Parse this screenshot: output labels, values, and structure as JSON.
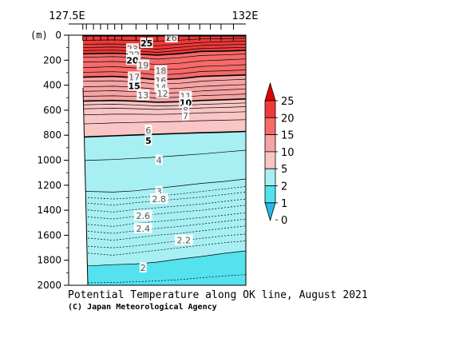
{
  "chart_data": {
    "type": "heatmap",
    "title": "Potential Temperature along OK line, August 2021",
    "credit": "(C) Japan Meteorological Agency",
    "ylabel": "(m)",
    "x_range_labels": [
      "127.5E",
      "132E"
    ],
    "y_ticks": [
      0,
      200,
      400,
      600,
      800,
      1000,
      1200,
      1400,
      1600,
      1800,
      2000
    ],
    "ylim": [
      0,
      2000
    ],
    "y_inverted": true,
    "colorbar_ticks": [
      "0",
      "1",
      "2",
      "5",
      "10",
      "15",
      "20",
      "25"
    ],
    "bands": [
      {
        "from": 25,
        "to": 30,
        "color": "#e30000"
      },
      {
        "from": 20,
        "to": 25,
        "color": "#ee3a3a"
      },
      {
        "from": 15,
        "to": 20,
        "color": "#f66a6a"
      },
      {
        "from": 10,
        "to": 15,
        "color": "#f7a3a3"
      },
      {
        "from": 5,
        "to": 10,
        "color": "#fac5c5"
      },
      {
        "from": 2,
        "to": 5,
        "color": "#a7eff2"
      },
      {
        "from": 1,
        "to": 2,
        "color": "#53e2ee"
      },
      {
        "from": 0,
        "to": 1,
        "color": "#2ab8ec"
      }
    ],
    "contours": [
      {
        "value": 25,
        "depths": [
          5,
          5,
          5,
          5,
          5,
          5,
          5,
          5,
          5
        ],
        "style": "solid",
        "bold": true
      },
      {
        "value": 24,
        "depths": [
          45,
          40,
          38,
          42,
          48,
          40,
          30,
          28,
          25
        ],
        "style": "solid"
      },
      {
        "value": 23,
        "depths": [
          75,
          72,
          70,
          75,
          85,
          72,
          58,
          52,
          48
        ],
        "style": "solid"
      },
      {
        "value": 22,
        "depths": [
          100,
          98,
          95,
          100,
          112,
          98,
          82,
          78,
          72
        ],
        "style": "solid"
      },
      {
        "value": 21,
        "depths": [
          125,
          122,
          120,
          125,
          138,
          122,
          106,
          102,
          98
        ],
        "style": "solid"
      },
      {
        "value": 20,
        "depths": [
          152,
          148,
          145,
          150,
          160,
          148,
          130,
          128,
          122
        ],
        "style": "solid",
        "bold": true
      },
      {
        "value": 19,
        "depths": [
          180,
          176,
          172,
          178,
          192,
          180,
          162,
          158,
          150
        ],
        "style": "solid"
      },
      {
        "value": 18,
        "depths": [
          218,
          214,
          210,
          218,
          235,
          225,
          205,
          198,
          190
        ],
        "style": "solid"
      },
      {
        "value": 17,
        "depths": [
          262,
          258,
          252,
          262,
          278,
          270,
          250,
          244,
          236
        ],
        "style": "solid"
      },
      {
        "value": 16,
        "depths": [
          300,
          296,
          292,
          300,
          318,
          310,
          290,
          285,
          278
        ],
        "style": "solid"
      },
      {
        "value": 15,
        "depths": [
          338,
          334,
          330,
          340,
          356,
          348,
          330,
          324,
          318
        ],
        "style": "solid",
        "bold": true
      },
      {
        "value": 14,
        "depths": [
          372,
          368,
          365,
          374,
          392,
          385,
          368,
          360,
          352
        ],
        "style": "solid"
      },
      {
        "value": 13,
        "depths": [
          418,
          412,
          408,
          416,
          432,
          425,
          410,
          402,
          395
        ],
        "style": "solid"
      },
      {
        "value": 12,
        "depths": [
          452,
          448,
          444,
          452,
          466,
          460,
          446,
          438,
          430
        ],
        "style": "solid"
      },
      {
        "value": 11,
        "depths": [
          492,
          488,
          485,
          490,
          502,
          496,
          484,
          478,
          470
        ],
        "style": "solid"
      },
      {
        "value": 10,
        "depths": [
          530,
          526,
          522,
          528,
          536,
          532,
          522,
          516,
          510
        ],
        "style": "solid",
        "bold": true
      },
      {
        "value": 9,
        "depths": [
          560,
          556,
          552,
          558,
          566,
          562,
          554,
          548,
          542
        ],
        "style": "solid"
      },
      {
        "value": 8,
        "depths": [
          592,
          588,
          584,
          588,
          594,
          590,
          582,
          578,
          572
        ],
        "style": "solid"
      },
      {
        "value": 7,
        "depths": [
          640,
          636,
          632,
          632,
          634,
          630,
          622,
          618,
          612
        ],
        "style": "solid"
      },
      {
        "value": 6,
        "depths": [
          712,
          708,
          702,
          698,
          694,
          690,
          684,
          680,
          676
        ],
        "style": "solid"
      },
      {
        "value": 5,
        "depths": [
          820,
          812,
          805,
          798,
          792,
          786,
          780,
          776,
          770
        ],
        "style": "solid",
        "bold": true
      },
      {
        "value": 4,
        "depths": [
          1010,
          1000,
          995,
          985,
          975,
          962,
          950,
          935,
          920
        ],
        "style": "solid"
      },
      {
        "value": 3,
        "depths": [
          1240,
          1250,
          1255,
          1245,
          1225,
          1205,
          1185,
          1170,
          1150
        ],
        "style": "solid"
      },
      {
        "value": 2.9,
        "depths": [
          1290,
          1300,
          1310,
          1300,
          1285,
          1270,
          1250,
          1230,
          1210
        ],
        "style": "dashed"
      },
      {
        "value": 2.8,
        "depths": [
          1330,
          1345,
          1360,
          1340,
          1325,
          1310,
          1295,
          1275,
          1255
        ],
        "style": "dashed"
      },
      {
        "value": 2.7,
        "depths": [
          1380,
          1400,
          1415,
          1395,
          1380,
          1365,
          1350,
          1330,
          1310
        ],
        "style": "dashed"
      },
      {
        "value": 2.6,
        "depths": [
          1440,
          1455,
          1470,
          1450,
          1430,
          1415,
          1400,
          1380,
          1360
        ],
        "style": "dashed"
      },
      {
        "value": 2.5,
        "depths": [
          1500,
          1515,
          1530,
          1505,
          1490,
          1475,
          1458,
          1440,
          1420
        ],
        "style": "dashed"
      },
      {
        "value": 2.4,
        "depths": [
          1555,
          1570,
          1585,
          1565,
          1545,
          1530,
          1510,
          1490,
          1470
        ],
        "style": "dashed"
      },
      {
        "value": 2.3,
        "depths": [
          1610,
          1625,
          1640,
          1620,
          1600,
          1585,
          1565,
          1545,
          1525
        ],
        "style": "dashed"
      },
      {
        "value": 2.2,
        "depths": [
          1675,
          1690,
          1700,
          1685,
          1665,
          1645,
          1625,
          1605,
          1590
        ],
        "style": "dashed"
      },
      {
        "value": 2.1,
        "depths": [
          1730,
          1745,
          1760,
          1740,
          1720,
          1700,
          1680,
          1660,
          1645
        ],
        "style": "dashed"
      },
      {
        "value": 2,
        "depths": [
          1840,
          1845,
          1835,
          1830,
          1815,
          1790,
          1770,
          1745,
          1725
        ],
        "style": "solid"
      },
      {
        "value": 1.9,
        "depths": [
          1985,
          1980,
          1978,
          1972,
          1965,
          1955,
          1940,
          1925,
          1915
        ],
        "style": "dashed"
      }
    ],
    "contour_labels": [
      {
        "text": "26",
        "x": 0.58,
        "depth": 20,
        "bold": false
      },
      {
        "text": "25",
        "x": 0.44,
        "depth": 65,
        "bold": true
      },
      {
        "text": "23",
        "x": 0.36,
        "depth": 110,
        "bold": false
      },
      {
        "text": "22",
        "x": 0.37,
        "depth": 155,
        "bold": false
      },
      {
        "text": "20",
        "x": 0.36,
        "depth": 200,
        "bold": true
      },
      {
        "text": "19",
        "x": 0.42,
        "depth": 240,
        "bold": false
      },
      {
        "text": "18",
        "x": 0.52,
        "depth": 285,
        "bold": false
      },
      {
        "text": "17",
        "x": 0.37,
        "depth": 335,
        "bold": false
      },
      {
        "text": "16",
        "x": 0.52,
        "depth": 365,
        "bold": false
      },
      {
        "text": "15",
        "x": 0.37,
        "depth": 405,
        "bold": true
      },
      {
        "text": "14",
        "x": 0.52,
        "depth": 418,
        "bold": false
      },
      {
        "text": "13",
        "x": 0.42,
        "depth": 480,
        "bold": false
      },
      {
        "text": "12",
        "x": 0.53,
        "depth": 465,
        "bold": false
      },
      {
        "text": "11",
        "x": 0.66,
        "depth": 490,
        "bold": false
      },
      {
        "text": "10",
        "x": 0.66,
        "depth": 540,
        "bold": true
      },
      {
        "text": "8",
        "x": 0.66,
        "depth": 600,
        "bold": false
      },
      {
        "text": "7",
        "x": 0.66,
        "depth": 645,
        "bold": false
      },
      {
        "text": "6",
        "x": 0.45,
        "depth": 760,
        "bold": false
      },
      {
        "text": "5",
        "x": 0.45,
        "depth": 845,
        "bold": true
      },
      {
        "text": "4",
        "x": 0.51,
        "depth": 1000,
        "bold": false
      },
      {
        "text": "3",
        "x": 0.51,
        "depth": 1250,
        "bold": false
      },
      {
        "text": "2.8",
        "x": 0.51,
        "depth": 1310,
        "bold": false
      },
      {
        "text": "2.6",
        "x": 0.42,
        "depth": 1445,
        "bold": false
      },
      {
        "text": "2.4",
        "x": 0.42,
        "depth": 1545,
        "bold": false
      },
      {
        "text": "2.2",
        "x": 0.65,
        "depth": 1640,
        "bold": false
      },
      {
        "text": "2",
        "x": 0.42,
        "depth": 1860,
        "bold": false
      }
    ],
    "bottom_depths": [
      660,
      680,
      720,
      980,
      1200,
      1300,
      1800,
      2000,
      2000
    ],
    "station_positions": [
      0.08,
      0.1,
      0.14,
      0.18,
      0.22,
      0.26,
      0.3,
      0.38,
      0.44,
      0.5,
      0.56,
      0.62,
      0.68,
      0.74,
      0.8,
      0.86,
      0.93
    ]
  }
}
